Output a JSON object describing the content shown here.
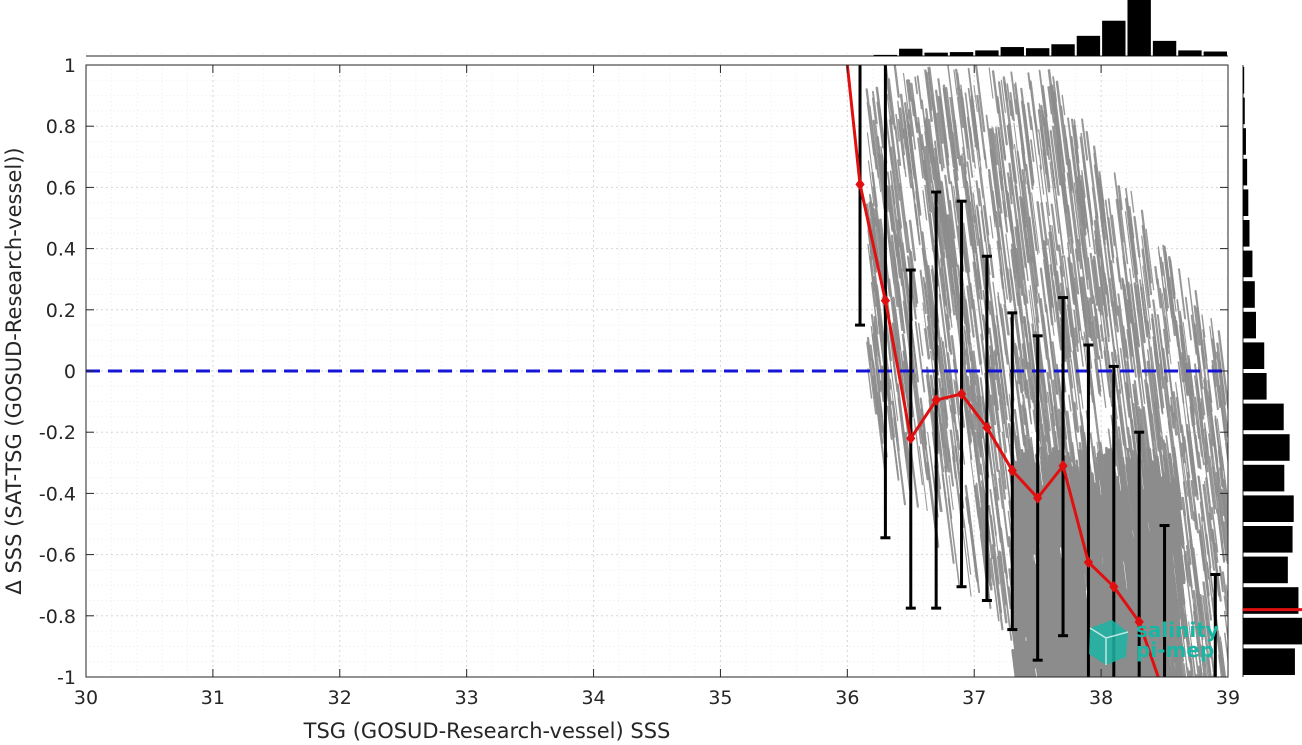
{
  "chart_data": {
    "type": "scatter",
    "xlabel": "TSG (GOSUD-Research-vessel) SSS",
    "ylabel": "Δ SSS (SAT-TSG (GOSUD-Research-vessel))",
    "xlim": [
      30,
      39
    ],
    "ylim": [
      -1,
      1
    ],
    "x_ticks": [
      "30",
      "31",
      "32",
      "33",
      "34",
      "35",
      "36",
      "37",
      "38",
      "39"
    ],
    "y_ticks": [
      "1",
      "0.8",
      "0.6",
      "0.4",
      "0.2",
      "0",
      "-0.2",
      "-0.4",
      "-0.6",
      "-0.8",
      "-1"
    ],
    "grid": true,
    "reference_line": {
      "y": 0,
      "style": "dashed",
      "color": "#1515d6"
    },
    "colors": {
      "scatter": "#8c8c8c",
      "mean": "#e01010",
      "errorbar": "#000000",
      "histogram": "#000000"
    },
    "scatter_region": {
      "x_range": [
        36.1,
        39
      ],
      "y_range": [
        -1,
        1
      ],
      "description_color": "gray"
    },
    "mean_line": {
      "x": [
        36.1,
        36.3,
        36.5,
        36.7,
        36.9,
        37.1,
        37.3,
        37.5,
        37.7,
        37.9,
        38.1,
        38.3
      ],
      "y": [
        0.61,
        0.23,
        -0.22,
        -0.095,
        -0.075,
        -0.185,
        -0.325,
        -0.415,
        -0.31,
        -0.625,
        -0.705,
        -0.82
      ],
      "upper": [
        1.0,
        1.0,
        0.33,
        0.585,
        0.555,
        0.375,
        0.19,
        0.115,
        0.24,
        0.085,
        0.015,
        -0.2
      ],
      "lower": [
        0.15,
        -0.545,
        -0.775,
        -0.775,
        -0.705,
        -0.75,
        -0.845,
        -0.945,
        -0.865,
        -1.0,
        -1.0,
        -1.0
      ],
      "extra_line_start": {
        "x": 36.0,
        "y": 1.0
      },
      "extra_line_end": {
        "x": 38.45,
        "y": -1.0
      }
    },
    "extra_errorbars": [
      {
        "x": 38.5,
        "upper": -0.505,
        "lower": -1.0
      },
      {
        "x": 38.9,
        "upper": -0.665,
        "lower": -1.0
      }
    ],
    "top_histogram": {
      "bin_centers": [
        36.1,
        36.3,
        36.5,
        36.7,
        36.9,
        37.1,
        37.3,
        37.5,
        37.7,
        37.9,
        38.1,
        38.3,
        38.5,
        38.7,
        38.9
      ],
      "counts": [
        0,
        2,
        13,
        6,
        7,
        10,
        16,
        14,
        21,
        36,
        63,
        100,
        27,
        10,
        8
      ]
    },
    "right_histogram": {
      "bin_centers": [
        0.95,
        0.85,
        0.75,
        0.65,
        0.55,
        0.45,
        0.35,
        0.25,
        0.15,
        0.05,
        -0.05,
        -0.15,
        -0.25,
        -0.35,
        -0.45,
        -0.55,
        -0.65,
        -0.75,
        -0.85,
        -0.95
      ],
      "counts": [
        2,
        3,
        5,
        7,
        9,
        11,
        16,
        20,
        22,
        36,
        40,
        69,
        79,
        70,
        86,
        84,
        76,
        94,
        100,
        88
      ],
      "mean_marker_y": -0.78
    }
  },
  "logo": {
    "line1": "salinity",
    "line2": "pi-mep",
    "color": "#1bb5a4"
  }
}
